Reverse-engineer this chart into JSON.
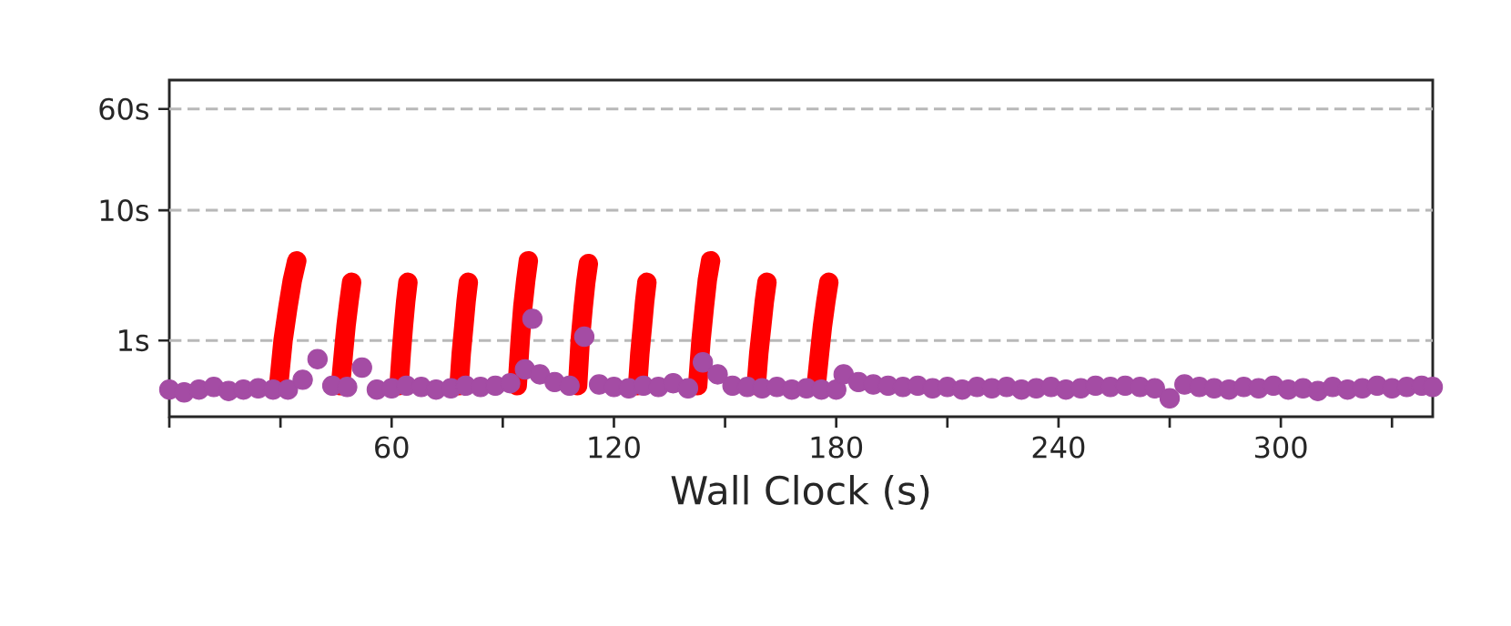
{
  "chart_data": {
    "type": "scatter",
    "xlabel": "Wall Clock (s)",
    "xlim": [
      0,
      341
    ],
    "ylim": [
      0.26,
      100
    ],
    "log": "y",
    "grid": "y",
    "xticks": [
      {
        "value": 0,
        "label": null
      },
      {
        "value": 30,
        "label": null
      },
      60,
      {
        "value": 90,
        "label": null
      },
      120,
      {
        "value": 150,
        "label": null
      },
      180,
      {
        "value": 210,
        "label": null
      },
      240,
      {
        "value": 270,
        "label": null
      },
      300,
      {
        "value": 330,
        "label": null
      }
    ],
    "yticks": [
      {
        "value": 1,
        "label": "1s"
      },
      {
        "value": 10,
        "label": "10s"
      },
      {
        "value": 60,
        "label": "60s"
      }
    ],
    "series": [
      {
        "type": "line",
        "marker": "none",
        "color": "#ff0000",
        "x": [
          29.5,
          30.7,
          32.0,
          33.2,
          34.4,
          40,
          46.2,
          47.0,
          47.7,
          48.5,
          49.2,
          55,
          62.0,
          62.6,
          63.2,
          63.8,
          64.4,
          70,
          78.2,
          78.8,
          79.5,
          80.1,
          80.7,
          87,
          93.9,
          94.7,
          95.4,
          96.2,
          96.9,
          103,
          110.2,
          110.9,
          111.7,
          112.4,
          113.1,
          120,
          126.4,
          127.0,
          127.7,
          128.3,
          128.9,
          135,
          142.6,
          143.5,
          144.4,
          145.2,
          146.1,
          152,
          158.4,
          159.1,
          159.9,
          160.6,
          161.3,
          168,
          174.6,
          175.5,
          176.3,
          177.2,
          178.0
        ],
        "values": [
          0.45,
          1.0,
          1.8,
          2.9,
          4.1,
          null,
          0.45,
          0.8,
          1.3,
          2.0,
          2.8,
          null,
          0.45,
          0.8,
          1.3,
          2.0,
          2.8,
          null,
          0.45,
          0.8,
          1.3,
          2.0,
          2.8,
          null,
          0.45,
          1.0,
          1.8,
          2.9,
          4.1,
          null,
          0.45,
          1.0,
          1.8,
          2.8,
          3.9,
          null,
          0.45,
          0.8,
          1.3,
          2.0,
          2.8,
          null,
          0.45,
          1.0,
          1.8,
          2.9,
          4.1,
          null,
          0.45,
          0.8,
          1.3,
          2.0,
          2.8,
          null,
          0.45,
          0.8,
          1.3,
          2.0,
          2.8
        ]
      },
      {
        "marker": "circle",
        "color": "#a44ca4",
        "x": [
          0,
          4,
          8,
          12,
          16,
          20,
          24,
          28,
          32,
          36,
          40,
          44,
          48,
          52,
          56,
          60,
          64,
          68,
          72,
          76,
          80,
          84,
          88,
          92,
          96,
          98,
          100,
          104,
          108,
          112,
          116,
          120,
          124,
          128,
          132,
          136,
          140,
          144,
          148,
          152,
          156,
          160,
          164,
          168,
          172,
          176,
          180,
          182,
          186,
          190,
          194,
          198,
          202,
          206,
          210,
          214,
          218,
          222,
          226,
          230,
          234,
          238,
          242,
          246,
          250,
          254,
          258,
          262,
          266,
          270,
          274,
          278,
          282,
          286,
          290,
          294,
          298,
          302,
          306,
          310,
          314,
          318,
          322,
          326,
          330,
          334,
          338,
          341
        ],
        "values": [
          0.42,
          0.4,
          0.42,
          0.44,
          0.41,
          0.42,
          0.43,
          0.42,
          0.42,
          0.5,
          0.72,
          0.45,
          0.44,
          0.62,
          0.42,
          0.43,
          0.45,
          0.44,
          0.42,
          0.43,
          0.45,
          0.44,
          0.45,
          0.47,
          0.6,
          1.47,
          0.55,
          0.48,
          0.45,
          1.07,
          0.46,
          0.44,
          0.43,
          0.45,
          0.44,
          0.47,
          0.43,
          0.68,
          0.55,
          0.45,
          0.44,
          0.43,
          0.44,
          0.42,
          0.43,
          0.42,
          0.42,
          0.55,
          0.48,
          0.46,
          0.45,
          0.44,
          0.45,
          0.43,
          0.44,
          0.42,
          0.44,
          0.43,
          0.44,
          0.42,
          0.43,
          0.44,
          0.42,
          0.43,
          0.45,
          0.44,
          0.45,
          0.44,
          0.43,
          0.36,
          0.46,
          0.44,
          0.43,
          0.42,
          0.44,
          0.43,
          0.45,
          0.42,
          0.43,
          0.41,
          0.44,
          0.42,
          0.43,
          0.45,
          0.43,
          0.44,
          0.45,
          0.44
        ]
      }
    ]
  }
}
